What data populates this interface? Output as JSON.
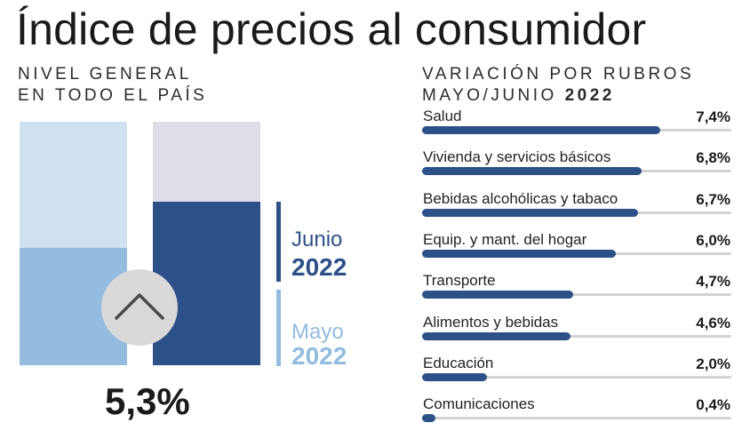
{
  "title": "Índice de precios al consumidor",
  "left_subtitle": {
    "line1": "NIVEL GENERAL",
    "line2": "EN TODO EL PAÍS"
  },
  "right_subtitle": {
    "line1": "VARIACIÓN POR RUBROS",
    "line2_prefix": "MAYO/JUNIO ",
    "line2_year": "2022"
  },
  "legend": {
    "junio": {
      "month": "Junio",
      "year": "2022"
    },
    "mayo": {
      "month": "Mayo",
      "year": "2022"
    }
  },
  "headline_value": "5,3%",
  "colors": {
    "dark_blue": "#2d5088",
    "light_blue": "#93bcdf",
    "pale_blue": "#cfe0f0",
    "pale_gray": "#dddde7",
    "track": "#d3d3d3"
  },
  "icons": {
    "trend": "chevron-up-icon"
  },
  "chart_data": [
    {
      "type": "bar",
      "categories": [
        "Mayo 2022",
        "Junio 2022"
      ],
      "values": [
        0.48,
        0.67
      ],
      "value_unit": "fraction of column height",
      "headline": "5,3%"
    },
    {
      "type": "bar",
      "orientation": "horizontal",
      "title": "VARIACIÓN POR RUBROS MAYO/JUNIO 2022",
      "categories": [
        "Salud",
        "Vivienda y servicios básicos",
        "Bebidas alcohólicas y tabaco",
        "Equip. y mant. del hogar",
        "Transporte",
        "Alimentos y bebidas",
        "Educación",
        "Comunicaciones"
      ],
      "values": [
        7.4,
        6.8,
        6.7,
        6.0,
        4.7,
        4.6,
        2.0,
        0.4
      ],
      "labels": [
        "7,4%",
        "6,8%",
        "6,7%",
        "6,0%",
        "4,7%",
        "4,6%",
        "2,0%",
        "0,4%"
      ],
      "xlim": [
        0,
        9.6
      ]
    }
  ]
}
